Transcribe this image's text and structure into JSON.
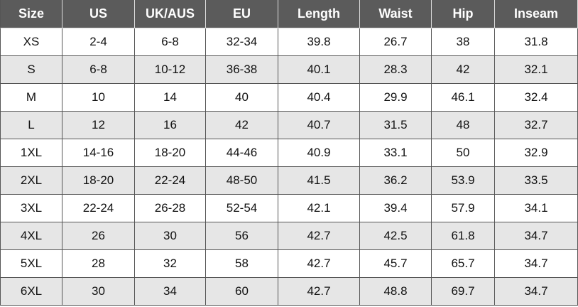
{
  "table": {
    "header": [
      "Size",
      "US",
      "UK/AUS",
      "EU",
      "Length",
      "Waist",
      "Hip",
      "Inseam"
    ],
    "rows": [
      [
        "XS",
        "2-4",
        "6-8",
        "32-34",
        "39.8",
        "26.7",
        "38",
        "31.8"
      ],
      [
        "S",
        "6-8",
        "10-12",
        "36-38",
        "40.1",
        "28.3",
        "42",
        "32.1"
      ],
      [
        "M",
        "10",
        "14",
        "40",
        "40.4",
        "29.9",
        "46.1",
        "32.4"
      ],
      [
        "L",
        "12",
        "16",
        "42",
        "40.7",
        "31.5",
        "48",
        "32.7"
      ],
      [
        "1XL",
        "14-16",
        "18-20",
        "44-46",
        "40.9",
        "33.1",
        "50",
        "32.9"
      ],
      [
        "2XL",
        "18-20",
        "22-24",
        "48-50",
        "41.5",
        "36.2",
        "53.9",
        "33.5"
      ],
      [
        "3XL",
        "22-24",
        "26-28",
        "52-54",
        "42.1",
        "39.4",
        "57.9",
        "34.1"
      ],
      [
        "4XL",
        "26",
        "30",
        "56",
        "42.7",
        "42.5",
        "61.8",
        "34.7"
      ],
      [
        "5XL",
        "28",
        "32",
        "58",
        "42.7",
        "45.7",
        "65.7",
        "34.7"
      ],
      [
        "6XL",
        "30",
        "34",
        "60",
        "42.7",
        "48.8",
        "69.7",
        "34.7"
      ]
    ]
  }
}
